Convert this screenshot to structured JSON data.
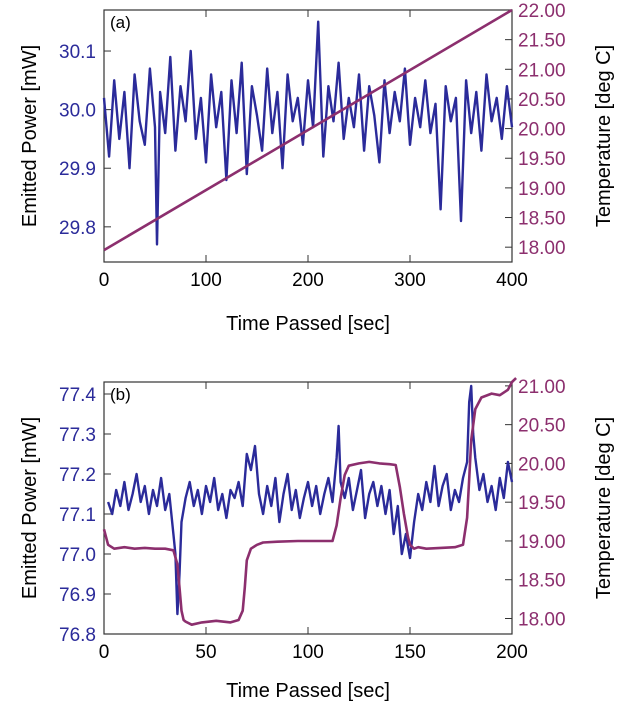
{
  "colors": {
    "power": "#2b2b9a",
    "temperature": "#8c2f6e",
    "frame": "#333333"
  },
  "chart_data": [
    {
      "type": "line",
      "panel_label": "(a)",
      "xlabel": "Time Passed [sec]",
      "ylabel_left": "Emitted Power [mW]",
      "ylabel_right": "Temperature [deg C]",
      "xlim": [
        0,
        400
      ],
      "ylim_left": [
        29.74,
        30.17
      ],
      "ylim_right": [
        17.75,
        22.0
      ],
      "x_ticks": [
        0,
        100,
        200,
        300,
        400
      ],
      "x_tick_labels": [
        "0",
        "100",
        "200",
        "300",
        "400"
      ],
      "y_left_ticks": [
        29.8,
        29.9,
        30.0,
        30.1
      ],
      "y_left_tick_labels": [
        "29.8",
        "29.9",
        "30.0",
        "30.1"
      ],
      "y_right_ticks": [
        18.0,
        18.5,
        19.0,
        19.5,
        20.0,
        20.5,
        21.0,
        21.5,
        22.0
      ],
      "y_right_tick_labels": [
        "18.00",
        "18.50",
        "19.00",
        "19.50",
        "20.00",
        "20.50",
        "21.00",
        "21.50",
        "22.00"
      ],
      "series": [
        {
          "name": "Emitted Power",
          "axis": "left",
          "x": [
            0,
            5,
            10,
            15,
            20,
            25,
            30,
            35,
            40,
            45,
            50,
            52,
            55,
            60,
            65,
            70,
            75,
            80,
            85,
            90,
            95,
            100,
            105,
            110,
            115,
            120,
            125,
            130,
            135,
            140,
            145,
            150,
            155,
            160,
            165,
            170,
            175,
            180,
            185,
            190,
            195,
            200,
            205,
            210,
            215,
            220,
            225,
            230,
            235,
            240,
            245,
            250,
            255,
            260,
            265,
            270,
            275,
            280,
            285,
            290,
            295,
            300,
            305,
            310,
            315,
            320,
            325,
            330,
            335,
            340,
            345,
            350,
            355,
            360,
            365,
            370,
            375,
            380,
            385,
            390,
            395,
            400
          ],
          "y": [
            30.02,
            29.92,
            30.05,
            29.95,
            30.03,
            29.9,
            30.06,
            29.98,
            29.94,
            30.07,
            29.97,
            29.77,
            30.03,
            29.96,
            30.09,
            29.93,
            30.04,
            29.98,
            30.1,
            29.95,
            30.02,
            29.91,
            30.06,
            29.97,
            30.03,
            29.88,
            30.05,
            29.96,
            30.08,
            29.89,
            30.04,
            29.99,
            29.93,
            30.07,
            29.96,
            30.03,
            29.9,
            30.06,
            29.98,
            30.02,
            29.94,
            30.05,
            29.97,
            30.15,
            29.92,
            30.04,
            29.98,
            30.08,
            29.95,
            30.02,
            29.97,
            30.06,
            29.93,
            30.04,
            29.99,
            29.91,
            30.05,
            29.96,
            30.03,
            29.98,
            30.07,
            29.94,
            30.02,
            29.97,
            30.05,
            29.96,
            30.01,
            29.83,
            30.04,
            29.98,
            30.02,
            29.81,
            30.05,
            29.96,
            30.03,
            29.93,
            30.06,
            29.98,
            30.02,
            29.95,
            30.04,
            29.97
          ]
        },
        {
          "name": "Temperature",
          "axis": "right",
          "x": [
            0,
            400
          ],
          "y": [
            17.95,
            22.0
          ]
        }
      ]
    },
    {
      "type": "line",
      "panel_label": "(b)",
      "xlabel": "Time Passed [sec]",
      "ylabel_left": "Emitted Power [mW]",
      "ylabel_right": "Temperature [deg C]",
      "xlim": [
        0,
        200
      ],
      "ylim_left": [
        76.8,
        77.43
      ],
      "ylim_right": [
        17.8,
        21.05
      ],
      "x_ticks": [
        0,
        50,
        100,
        150,
        200
      ],
      "x_tick_labels": [
        "0",
        "50",
        "100",
        "150",
        "200"
      ],
      "y_left_ticks": [
        76.8,
        76.9,
        77.0,
        77.1,
        77.2,
        77.3,
        77.4
      ],
      "y_left_tick_labels": [
        "76.8",
        "76.9",
        "77.0",
        "77.1",
        "77.2",
        "77.3",
        "77.4"
      ],
      "y_right_ticks": [
        18.0,
        18.5,
        19.0,
        19.5,
        20.0,
        20.5,
        21.0
      ],
      "y_right_tick_labels": [
        "18.00",
        "18.50",
        "19.00",
        "19.50",
        "20.00",
        "20.50",
        "21.00"
      ],
      "series": [
        {
          "name": "Emitted Power",
          "axis": "left",
          "x": [
            2,
            4,
            6,
            8,
            10,
            12,
            14,
            16,
            18,
            20,
            22,
            24,
            26,
            28,
            30,
            32,
            34,
            35,
            36,
            37,
            38,
            40,
            42,
            44,
            46,
            48,
            50,
            52,
            54,
            56,
            58,
            60,
            62,
            64,
            66,
            68,
            70,
            72,
            74,
            76,
            78,
            80,
            82,
            84,
            86,
            88,
            90,
            92,
            94,
            96,
            98,
            100,
            102,
            104,
            106,
            108,
            110,
            112,
            114,
            115,
            116,
            118,
            120,
            122,
            124,
            126,
            128,
            130,
            132,
            134,
            136,
            138,
            140,
            142,
            144,
            146,
            148,
            150,
            152,
            154,
            156,
            158,
            160,
            162,
            164,
            166,
            168,
            170,
            172,
            174,
            176,
            178,
            179,
            180,
            181,
            182,
            184,
            186,
            188,
            190,
            192,
            194,
            196,
            198,
            200
          ],
          "y": [
            77.13,
            77.1,
            77.16,
            77.12,
            77.18,
            77.11,
            77.15,
            77.2,
            77.13,
            77.17,
            77.1,
            77.16,
            77.12,
            77.19,
            77.11,
            77.15,
            77.05,
            77.0,
            76.85,
            76.95,
            77.08,
            77.14,
            77.18,
            77.12,
            77.16,
            77.1,
            77.17,
            77.13,
            77.19,
            77.11,
            77.15,
            77.09,
            77.16,
            77.14,
            77.18,
            77.12,
            77.25,
            77.21,
            77.27,
            77.15,
            77.1,
            77.17,
            77.12,
            77.19,
            77.08,
            77.15,
            77.2,
            77.11,
            77.16,
            77.09,
            77.14,
            77.18,
            77.12,
            77.17,
            77.1,
            77.15,
            77.19,
            77.13,
            77.24,
            77.32,
            77.18,
            77.14,
            77.19,
            77.11,
            77.16,
            77.21,
            77.09,
            77.15,
            77.18,
            77.12,
            77.17,
            77.1,
            77.16,
            77.05,
            77.12,
            77.0,
            77.05,
            76.99,
            77.08,
            77.15,
            77.11,
            77.18,
            77.13,
            77.22,
            77.12,
            77.17,
            77.2,
            77.11,
            77.16,
            77.13,
            77.19,
            77.23,
            77.38,
            77.42,
            77.3,
            77.24,
            77.16,
            77.2,
            77.13,
            77.17,
            77.11,
            77.19,
            77.14,
            77.23,
            77.18
          ]
        },
        {
          "name": "Temperature",
          "axis": "right",
          "x": [
            0,
            2,
            5,
            10,
            15,
            20,
            25,
            30,
            34,
            36,
            37,
            38,
            39,
            40,
            43,
            48,
            55,
            62,
            66,
            68,
            69,
            70,
            72,
            75,
            78,
            85,
            95,
            105,
            112,
            114,
            116,
            118,
            120,
            125,
            130,
            135,
            140,
            143,
            145,
            147,
            149,
            150,
            152,
            154,
            158,
            165,
            172,
            176,
            178,
            179,
            180,
            182,
            185,
            190,
            194,
            198,
            200,
            202
          ],
          "y": [
            19.15,
            18.95,
            18.9,
            18.92,
            18.9,
            18.91,
            18.9,
            18.9,
            18.88,
            18.7,
            18.4,
            18.1,
            17.98,
            17.96,
            17.92,
            17.95,
            17.97,
            17.95,
            17.98,
            18.1,
            18.4,
            18.75,
            18.9,
            18.95,
            18.98,
            18.99,
            19.0,
            19.0,
            19.0,
            19.2,
            19.55,
            19.85,
            19.97,
            20.0,
            20.02,
            20.0,
            19.99,
            19.98,
            19.7,
            19.35,
            19.05,
            18.95,
            18.9,
            18.92,
            18.9,
            18.91,
            18.92,
            18.95,
            19.3,
            19.8,
            20.3,
            20.7,
            20.85,
            20.9,
            20.88,
            20.95,
            21.05,
            21.1
          ]
        }
      ]
    }
  ]
}
